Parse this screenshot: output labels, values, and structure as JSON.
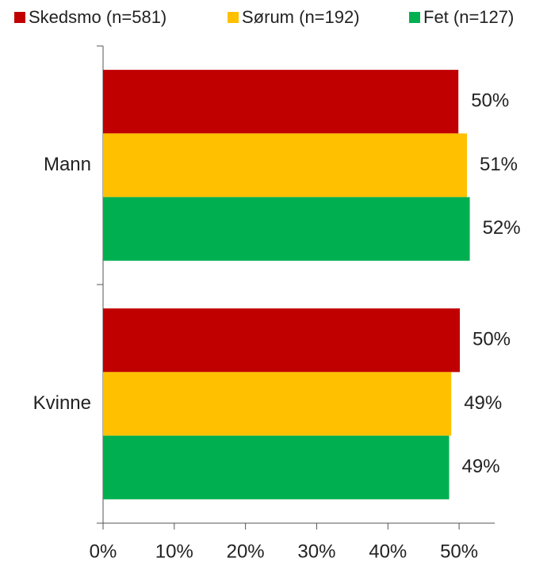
{
  "chart_data": {
    "type": "bar",
    "orientation": "horizontal",
    "categories": [
      "Mann",
      "Kvinne"
    ],
    "series": [
      {
        "name": "Skedsmo (n=581)",
        "color": "#c00000",
        "values": [
          49.9,
          50.1
        ],
        "value_labels": [
          "50%",
          "50%"
        ]
      },
      {
        "name": "Sørum (n=192)",
        "color": "#ffc000",
        "values": [
          51.1,
          48.9
        ],
        "value_labels": [
          "51%",
          "49%"
        ]
      },
      {
        "name": "Fet (n=127)",
        "color": "#00b050",
        "values": [
          51.5,
          48.6
        ],
        "value_labels": [
          "52%",
          "49%"
        ]
      }
    ],
    "xlim": [
      0,
      55
    ],
    "xticks": [
      {
        "value": 0,
        "label": "0%"
      },
      {
        "value": 10,
        "label": "10%"
      },
      {
        "value": 20,
        "label": "20%"
      },
      {
        "value": 30,
        "label": "30%"
      },
      {
        "value": 40,
        "label": "40%"
      },
      {
        "value": 50,
        "label": "50%"
      }
    ],
    "legend": "top"
  }
}
